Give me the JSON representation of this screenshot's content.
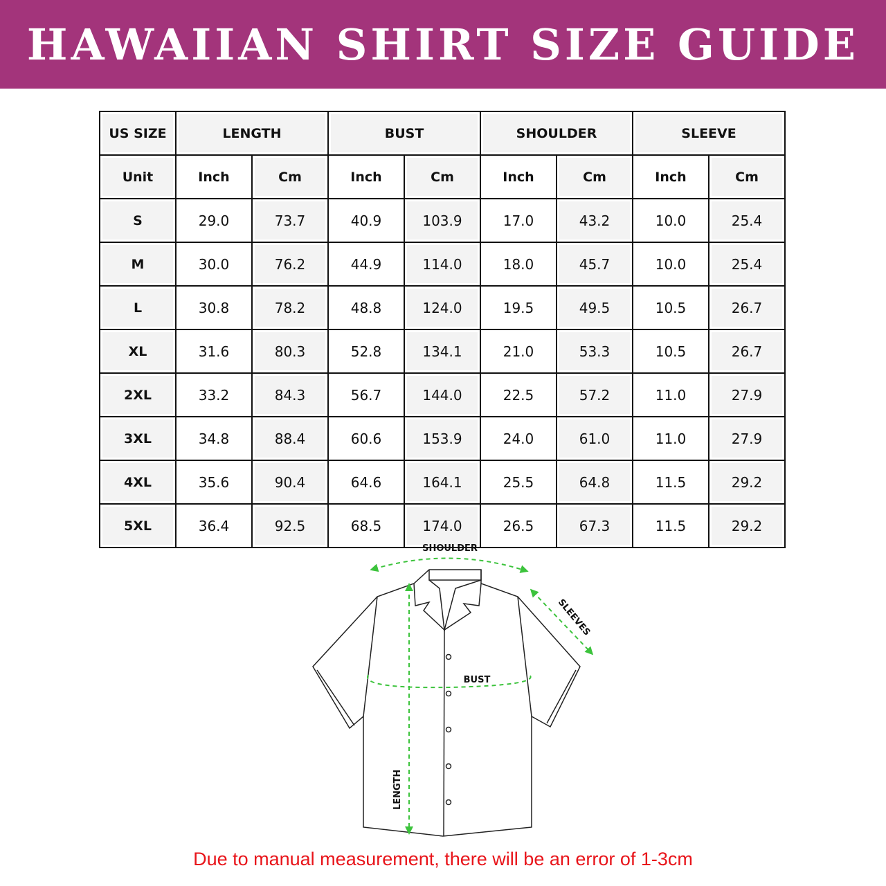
{
  "title": "HAWAIIAN SHIRT SIZE GUIDE",
  "colors": {
    "banner": "#a3347b",
    "measure_lines": "#3cc33c",
    "note": "#e8141a"
  },
  "table": {
    "size_header": "US SIZE",
    "groups": [
      "LENGTH",
      "BUST",
      "SHOULDER",
      "SLEEVE"
    ],
    "unit_label": "Unit",
    "units": [
      "Inch",
      "Cm",
      "Inch",
      "Cm",
      "Inch",
      "Cm",
      "Inch",
      "Cm"
    ],
    "rows": [
      {
        "size": "S",
        "values": [
          "29.0",
          "73.7",
          "40.9",
          "103.9",
          "17.0",
          "43.2",
          "10.0",
          "25.4"
        ]
      },
      {
        "size": "M",
        "values": [
          "30.0",
          "76.2",
          "44.9",
          "114.0",
          "18.0",
          "45.7",
          "10.0",
          "25.4"
        ]
      },
      {
        "size": "L",
        "values": [
          "30.8",
          "78.2",
          "48.8",
          "124.0",
          "19.5",
          "49.5",
          "10.5",
          "26.7"
        ]
      },
      {
        "size": "XL",
        "values": [
          "31.6",
          "80.3",
          "52.8",
          "134.1",
          "21.0",
          "53.3",
          "10.5",
          "26.7"
        ]
      },
      {
        "size": "2XL",
        "values": [
          "33.2",
          "84.3",
          "56.7",
          "144.0",
          "22.5",
          "57.2",
          "11.0",
          "27.9"
        ]
      },
      {
        "size": "3XL",
        "values": [
          "34.8",
          "88.4",
          "60.6",
          "153.9",
          "24.0",
          "61.0",
          "11.0",
          "27.9"
        ]
      },
      {
        "size": "4XL",
        "values": [
          "35.6",
          "90.4",
          "64.6",
          "164.1",
          "25.5",
          "64.8",
          "11.5",
          "29.2"
        ]
      },
      {
        "size": "5XL",
        "values": [
          "36.4",
          "92.5",
          "68.5",
          "174.0",
          "26.5",
          "67.3",
          "11.5",
          "29.2"
        ]
      }
    ]
  },
  "diagram": {
    "shoulder": "SHOULDER",
    "sleeves": "SLEEVES",
    "bust": "BUST",
    "length": "LENGTH"
  },
  "note": "Due to manual measurement, there will be an error of 1-3cm"
}
